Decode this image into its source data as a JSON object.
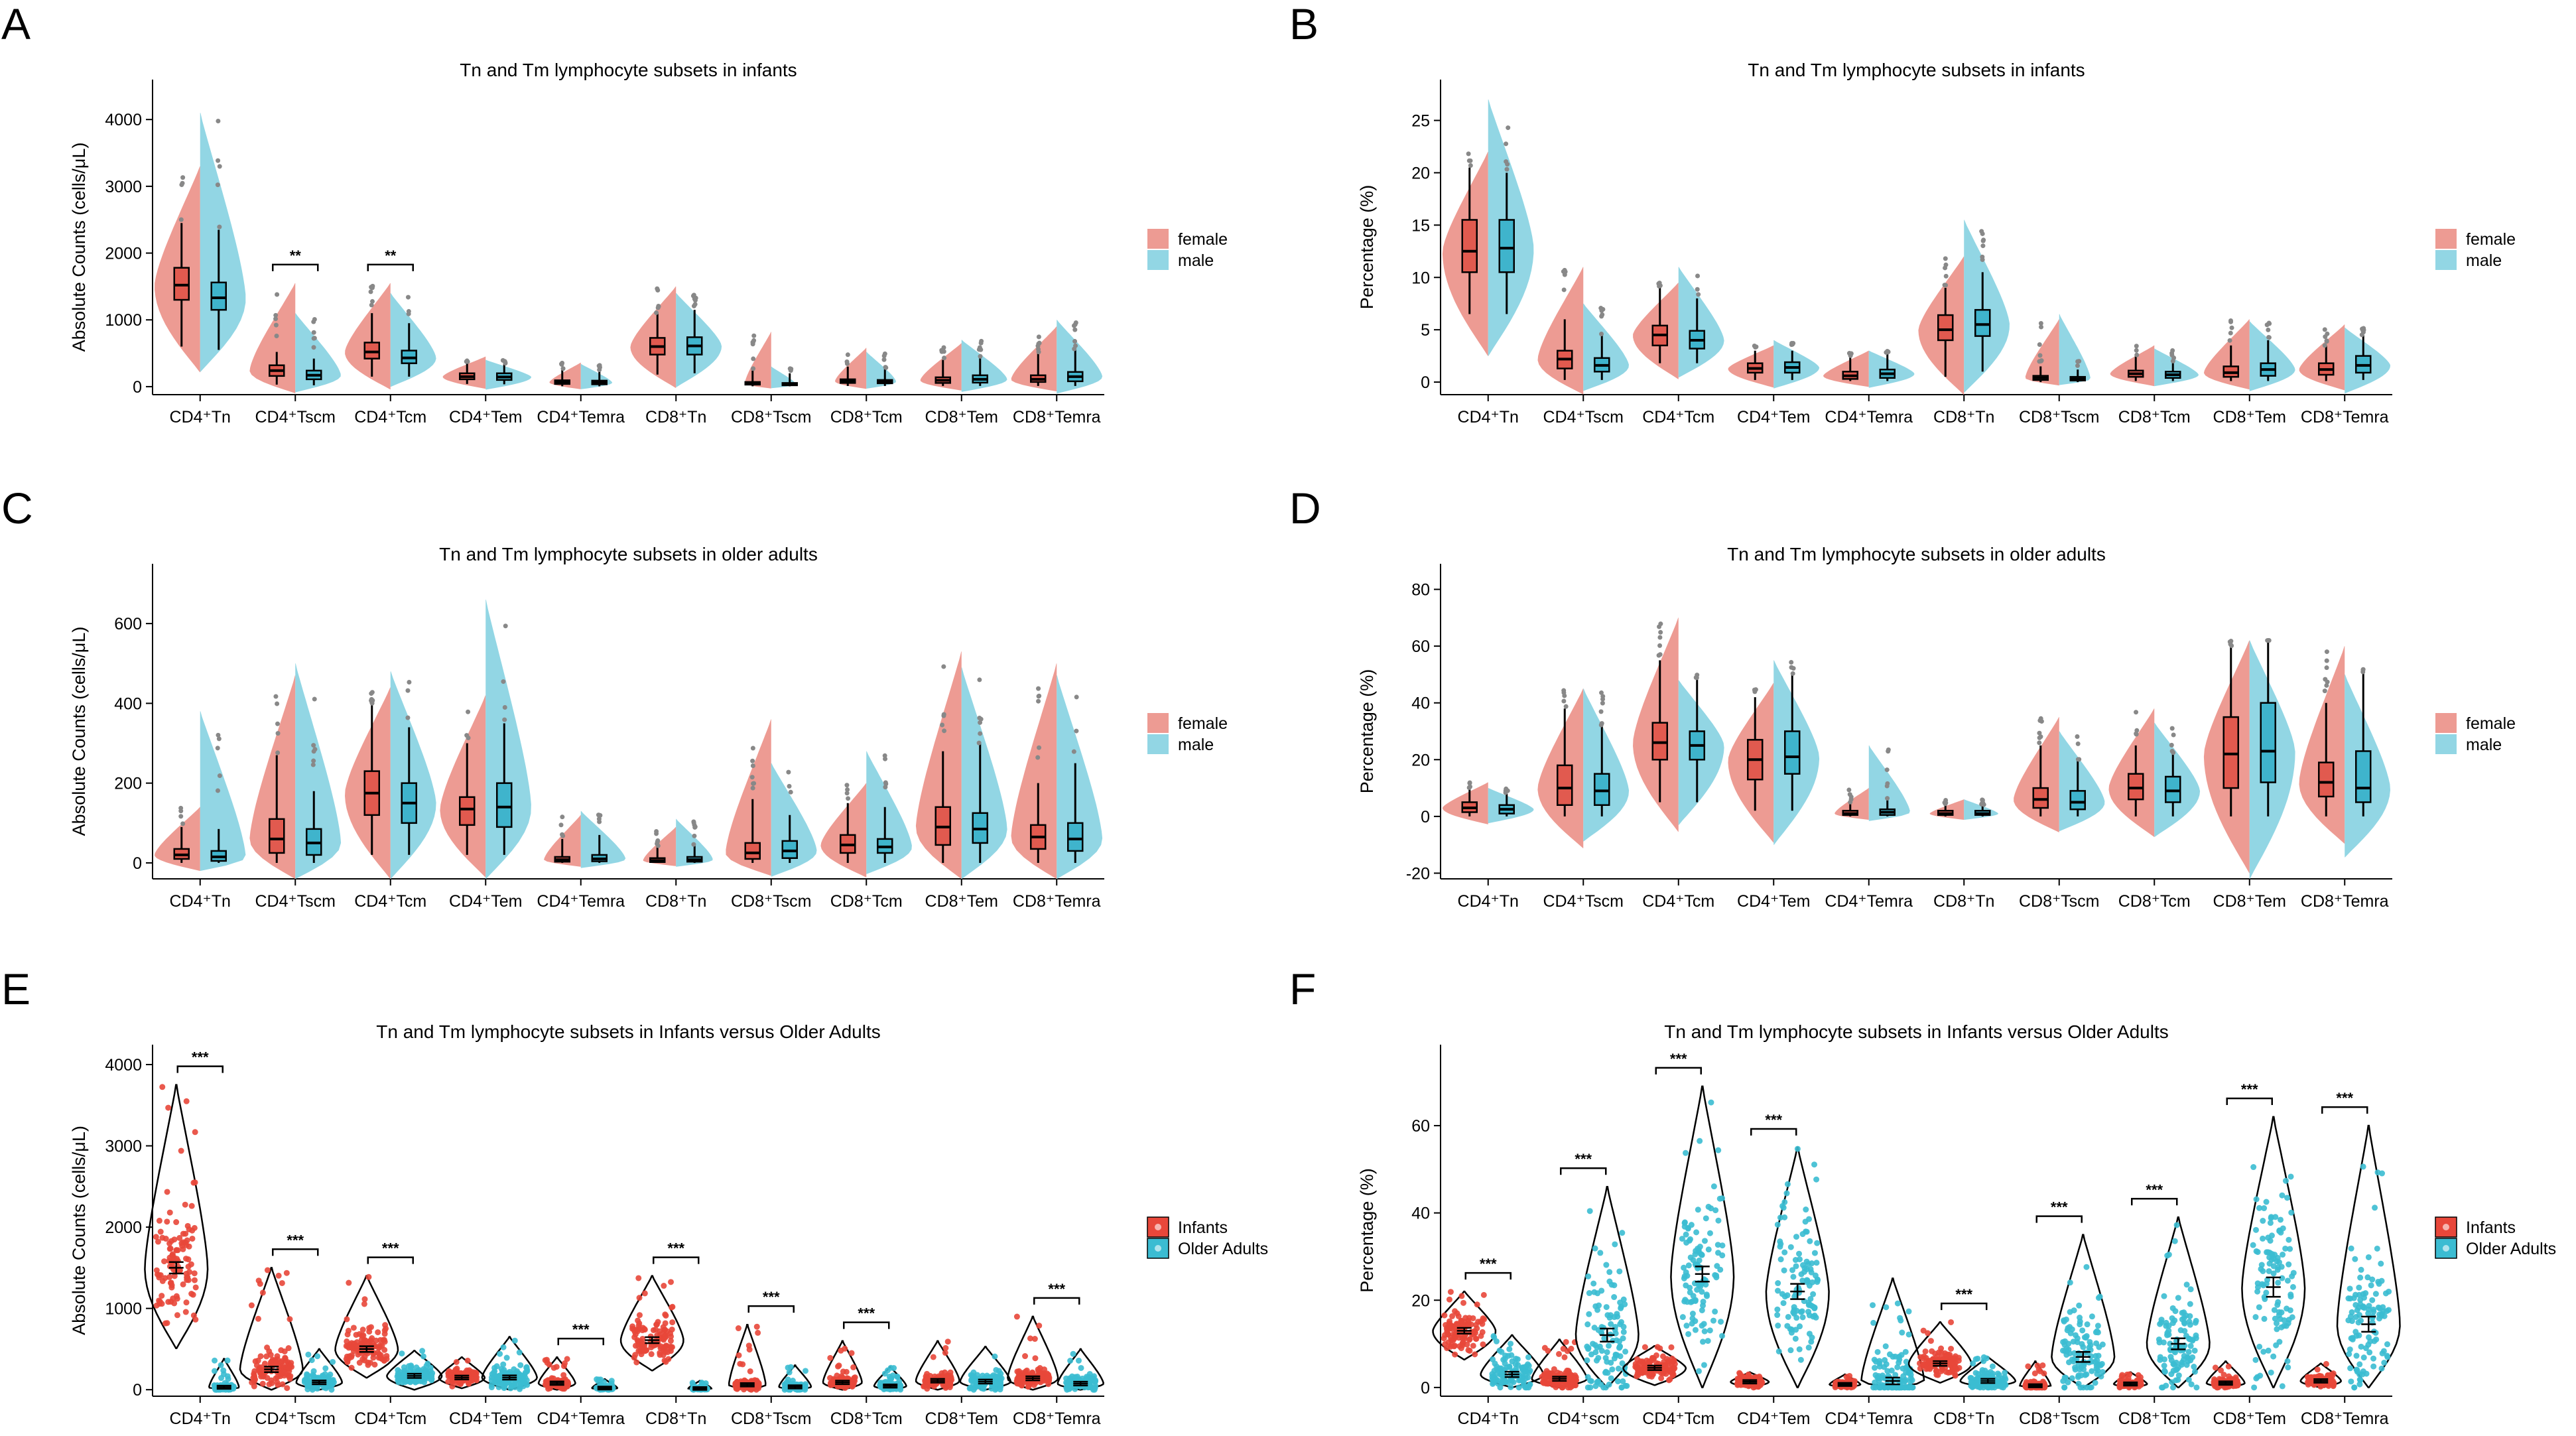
{
  "colors": {
    "female": "#ea8a80",
    "male": "#7fcfdf",
    "infants": "#e8473a",
    "older": "#3bbcd2",
    "box_female": "#e15a4f",
    "box_male": "#3fb4cc"
  },
  "chart_data": [
    {
      "id": "A",
      "type": "split-violin",
      "letter": "A",
      "title": "Tn and Tm lymphocyte subsets in infants",
      "ylabel": "Absolute Counts (cells/μL)",
      "ylim": [
        -120,
        4300
      ],
      "yticks": [
        0,
        1000,
        2000,
        3000,
        4000
      ],
      "categories": [
        "CD4⁺Tn",
        "CD4⁺Tscm",
        "CD4⁺Tcm",
        "CD4⁺Tem",
        "CD4⁺Temra",
        "CD8⁺Tn",
        "CD8⁺Tscm",
        "CD8⁺Tcm",
        "CD8⁺Tem",
        "CD8⁺Temra"
      ],
      "legend": [
        "female",
        "male"
      ],
      "series": [
        {
          "name": "female",
          "median": [
            1520,
            240,
            520,
            150,
            65,
            600,
            45,
            80,
            95,
            110
          ],
          "q1": [
            1300,
            160,
            420,
            110,
            40,
            480,
            30,
            55,
            55,
            70
          ],
          "q3": [
            1780,
            320,
            660,
            200,
            95,
            730,
            70,
            110,
            140,
            170
          ],
          "low": [
            600,
            30,
            150,
            40,
            5,
            180,
            5,
            10,
            10,
            10
          ],
          "high": [
            2450,
            520,
            1100,
            350,
            260,
            1100,
            240,
            300,
            400,
            500
          ],
          "vmax": [
            3300,
            1550,
            1550,
            450,
            360,
            1500,
            820,
            580,
            650,
            900
          ]
        },
        {
          "name": "male",
          "median": [
            1330,
            170,
            430,
            145,
            60,
            610,
            35,
            75,
            110,
            150
          ],
          "q1": [
            1150,
            110,
            350,
            100,
            35,
            480,
            20,
            50,
            60,
            80
          ],
          "q3": [
            1560,
            240,
            540,
            200,
            90,
            740,
            55,
            100,
            170,
            220
          ],
          "low": [
            550,
            20,
            150,
            35,
            5,
            200,
            5,
            10,
            10,
            10
          ],
          "high": [
            2350,
            420,
            950,
            340,
            250,
            1150,
            200,
            260,
            450,
            560
          ],
          "vmax": [
            4100,
            1100,
            1400,
            400,
            340,
            1400,
            300,
            520,
            700,
            1000
          ]
        }
      ],
      "annotations": [
        {
          "category": 1,
          "label": "**"
        },
        {
          "category": 2,
          "label": "**"
        }
      ]
    },
    {
      "id": "B",
      "type": "split-violin",
      "letter": "B",
      "title": "Tn and Tm lymphocyte subsets in infants",
      "ylabel": "Percentage (%)",
      "ylim": [
        -1.2,
        27
      ],
      "yticks": [
        0,
        5,
        10,
        15,
        20,
        25
      ],
      "categories": [
        "CD4⁺Tn",
        "CD4⁺Tscm",
        "CD4⁺Tcm",
        "CD4⁺Tem",
        "CD4⁺Temra",
        "CD8⁺Tn",
        "CD8⁺Tscm",
        "CD8⁺Tcm",
        "CD8⁺Tem",
        "CD8⁺Temra"
      ],
      "legend": [
        "female",
        "male"
      ],
      "series": [
        {
          "name": "female",
          "median": [
            12.5,
            2.2,
            4.5,
            1.3,
            0.6,
            5.0,
            0.4,
            0.8,
            0.9,
            1.2
          ],
          "q1": [
            10.5,
            1.3,
            3.5,
            0.9,
            0.3,
            4.0,
            0.2,
            0.5,
            0.5,
            0.7
          ],
          "q3": [
            15.5,
            3.0,
            5.4,
            1.8,
            1.0,
            6.4,
            0.6,
            1.1,
            1.5,
            1.8
          ],
          "low": [
            6.5,
            0.2,
            1.8,
            0.2,
            0.1,
            0.5,
            0.0,
            0.1,
            0.1,
            0.1
          ],
          "high": [
            20.5,
            6.0,
            9.0,
            3.0,
            2.5,
            9.0,
            1.5,
            2.5,
            3.5,
            3.5
          ],
          "vmax": [
            22,
            11,
            9.5,
            3.5,
            3.0,
            12,
            6,
            3.5,
            6,
            5.5
          ]
        },
        {
          "name": "male",
          "median": [
            12.8,
            1.6,
            4.0,
            1.4,
            0.8,
            5.5,
            0.3,
            0.7,
            1.2,
            1.6
          ],
          "q1": [
            10.5,
            1.0,
            3.2,
            0.9,
            0.4,
            4.4,
            0.15,
            0.4,
            0.6,
            0.9
          ],
          "q3": [
            15.5,
            2.3,
            4.9,
            1.9,
            1.2,
            6.9,
            0.5,
            1.0,
            1.8,
            2.5
          ],
          "low": [
            6.5,
            0.2,
            1.8,
            0.2,
            0.1,
            1.0,
            0.0,
            0.1,
            0.1,
            0.2
          ],
          "high": [
            20,
            4.5,
            8.0,
            3.0,
            2.8,
            10.5,
            1.2,
            2.0,
            4.0,
            4.5
          ],
          "vmax": [
            27,
            7.5,
            11,
            4.0,
            3.0,
            15.5,
            6.5,
            3.2,
            5.8,
            5.2
          ]
        }
      ],
      "annotations": []
    },
    {
      "id": "C",
      "type": "split-violin",
      "letter": "C",
      "title": "Tn and Tm lymphocyte subsets in older adults",
      "ylabel": "Absolute Counts (cells/μL)",
      "ylim": [
        -40,
        700
      ],
      "yticks": [
        0,
        200,
        400,
        600
      ],
      "categories": [
        "CD4⁺Tn",
        "CD4⁺Tscm",
        "CD4⁺Tcm",
        "CD4⁺Tem",
        "CD4⁺Temra",
        "CD8⁺Tn",
        "CD8⁺Tscm",
        "CD8⁺Tcm",
        "CD8⁺Tem",
        "CD8⁺Temra"
      ],
      "legend": [
        "female",
        "male"
      ],
      "series": [
        {
          "name": "female",
          "median": [
            20,
            60,
            175,
            135,
            8,
            6,
            25,
            45,
            90,
            65
          ],
          "q1": [
            10,
            25,
            120,
            95,
            3,
            2,
            10,
            25,
            45,
            35
          ],
          "q3": [
            35,
            110,
            230,
            165,
            15,
            12,
            50,
            70,
            140,
            95
          ],
          "low": [
            0,
            0,
            20,
            20,
            0,
            0,
            0,
            0,
            0,
            0
          ],
          "high": [
            90,
            270,
            400,
            300,
            60,
            40,
            160,
            150,
            280,
            200
          ],
          "vmax": [
            140,
            470,
            440,
            420,
            120,
            90,
            360,
            200,
            530,
            500
          ]
        },
        {
          "name": "male",
          "median": [
            15,
            50,
            150,
            140,
            10,
            8,
            30,
            40,
            85,
            60
          ],
          "q1": [
            5,
            20,
            100,
            90,
            4,
            3,
            12,
            25,
            50,
            30
          ],
          "q3": [
            30,
            85,
            200,
            200,
            20,
            15,
            55,
            60,
            125,
            100
          ],
          "low": [
            0,
            0,
            20,
            20,
            0,
            0,
            0,
            0,
            0,
            0
          ],
          "high": [
            85,
            180,
            340,
            350,
            70,
            45,
            120,
            140,
            300,
            250
          ],
          "vmax": [
            380,
            500,
            480,
            660,
            130,
            110,
            250,
            280,
            490,
            470
          ]
        }
      ],
      "annotations": []
    },
    {
      "id": "D",
      "type": "split-violin",
      "letter": "D",
      "title": "Tn and Tm lymphocyte subsets in older adults",
      "ylabel": "Percentage (%)",
      "ylim": [
        -22,
        82
      ],
      "yticks": [
        -20,
        0,
        20,
        40,
        60,
        80
      ],
      "categories": [
        "CD4⁺Tn",
        "CD4⁺Tscm",
        "CD4⁺Tcm",
        "CD4⁺Tem",
        "CD4⁺Temra",
        "CD8⁺Tn",
        "CD8⁺Tscm",
        "CD8⁺Tcm",
        "CD8⁺Tem",
        "CD8⁺Temra"
      ],
      "legend": [
        "female",
        "male"
      ],
      "series": [
        {
          "name": "female",
          "median": [
            3,
            10,
            26,
            20,
            1,
            1,
            6,
            10,
            22,
            12
          ],
          "q1": [
            1.5,
            4,
            20,
            13,
            0.5,
            0.5,
            3,
            6,
            10,
            7
          ],
          "q3": [
            5,
            18,
            33,
            27,
            2,
            2,
            10,
            15,
            35,
            19
          ],
          "low": [
            0,
            0,
            5,
            2,
            0,
            0,
            0,
            0,
            0,
            0
          ],
          "high": [
            10,
            38,
            55,
            42,
            5,
            4,
            25,
            25,
            60,
            40
          ],
          "vmax": [
            12,
            45,
            70,
            47,
            10,
            6,
            35,
            38,
            62,
            60
          ]
        },
        {
          "name": "male",
          "median": [
            2.5,
            9,
            25,
            21,
            1.5,
            1,
            5,
            9,
            23,
            10
          ],
          "q1": [
            1,
            4,
            20,
            15,
            0.5,
            0.5,
            2.5,
            5,
            12,
            5
          ],
          "q3": [
            4,
            15,
            30,
            30,
            2.5,
            2,
            9,
            14,
            40,
            23
          ],
          "low": [
            0,
            0,
            5,
            2,
            0,
            0,
            0,
            0,
            0,
            0
          ],
          "high": [
            8,
            32,
            50,
            50,
            6,
            4,
            20,
            22,
            62,
            52
          ],
          "vmax": [
            10,
            45,
            48,
            55,
            25,
            6,
            30,
            33,
            62,
            50
          ]
        }
      ],
      "annotations": []
    },
    {
      "id": "E",
      "type": "violin-jitter",
      "letter": "E",
      "title": "Tn and Tm lymphocyte subsets in Infants versus Older Adults",
      "ylabel": "Absolute Counts (cells/μL)",
      "ylim": [
        -80,
        4000
      ],
      "yticks": [
        0,
        1000,
        2000,
        3000,
        4000
      ],
      "categories": [
        "CD4⁺Tn",
        "CD4⁺Tscm",
        "CD4⁺Tcm",
        "CD4⁺Tem",
        "CD4⁺Temra",
        "CD8⁺Tn",
        "CD8⁺Tscm",
        "CD8⁺Tcm",
        "CD8⁺Tem",
        "CD8⁺Temra"
      ],
      "legend": [
        "Infants",
        "Older Adults"
      ],
      "series": [
        {
          "name": "Infants",
          "mean": [
            1500,
            250,
            500,
            150,
            80,
            610,
            60,
            90,
            110,
            140
          ],
          "vmax": [
            3750,
            1500,
            1400,
            400,
            400,
            1400,
            800,
            600,
            600,
            900
          ],
          "spread": [
            450,
            150,
            160,
            60,
            40,
            170,
            40,
            45,
            55,
            70
          ]
        },
        {
          "name": "Older Adults",
          "mean": [
            30,
            90,
            170,
            150,
            20,
            15,
            35,
            45,
            100,
            75
          ],
          "vmax": [
            380,
            500,
            480,
            650,
            130,
            110,
            300,
            280,
            530,
            500
          ],
          "spread": [
            25,
            60,
            80,
            80,
            15,
            10,
            30,
            30,
            70,
            60
          ]
        }
      ],
      "annotations": [
        {
          "category": 0,
          "label": "***"
        },
        {
          "category": 1,
          "label": "***"
        },
        {
          "category": 2,
          "label": "***"
        },
        {
          "category": 4,
          "label": "***"
        },
        {
          "category": 5,
          "label": "***"
        },
        {
          "category": 6,
          "label": "***"
        },
        {
          "category": 7,
          "label": "***"
        },
        {
          "category": 9,
          "label": "***"
        }
      ]
    },
    {
      "id": "F",
      "type": "violin-jitter",
      "letter": "F",
      "title": "Tn and Tm lymphocyte subsets in Infants versus Older Adults",
      "ylabel": "Percentage (%)",
      "ylim": [
        -2,
        74
      ],
      "yticks": [
        0,
        20,
        40,
        60
      ],
      "categories": [
        "CD4⁺Tn",
        "CD4⁺scm",
        "CD4⁺Tcm",
        "CD4⁺Tem",
        "CD4⁺Temra",
        "CD8⁺Tn",
        "CD8⁺Tscm",
        "CD8⁺Tcm",
        "CD8⁺Tem",
        "CD8⁺Temra"
      ],
      "legend": [
        "Infants",
        "Older Adults"
      ],
      "series": [
        {
          "name": "Infants",
          "mean": [
            13,
            2,
            4.5,
            1.3,
            0.7,
            5.5,
            0.4,
            0.8,
            1.0,
            1.5
          ],
          "vmax": [
            22,
            11,
            9.5,
            3.5,
            3,
            15,
            6,
            3.5,
            6,
            5.5
          ],
          "spread": [
            3,
            1.5,
            1.8,
            0.8,
            0.5,
            2,
            0.5,
            0.6,
            0.8,
            0.9
          ]
        },
        {
          "name": "Older Adults",
          "mean": [
            3,
            12,
            26,
            22,
            1.5,
            1.5,
            7,
            10,
            23,
            14.5
          ],
          "vmax": [
            12,
            46,
            69,
            55,
            25,
            7,
            35,
            39,
            62,
            60
          ],
          "spread": [
            2.5,
            10,
            12,
            12,
            4,
            1.5,
            7,
            8,
            16,
            12
          ]
        }
      ],
      "annotations": [
        {
          "category": 0,
          "label": "***"
        },
        {
          "category": 1,
          "label": "***"
        },
        {
          "category": 2,
          "label": "***"
        },
        {
          "category": 3,
          "label": "***"
        },
        {
          "category": 5,
          "label": "***"
        },
        {
          "category": 6,
          "label": "***"
        },
        {
          "category": 7,
          "label": "***"
        },
        {
          "category": 8,
          "label": "***"
        },
        {
          "category": 9,
          "label": "***"
        }
      ]
    }
  ]
}
